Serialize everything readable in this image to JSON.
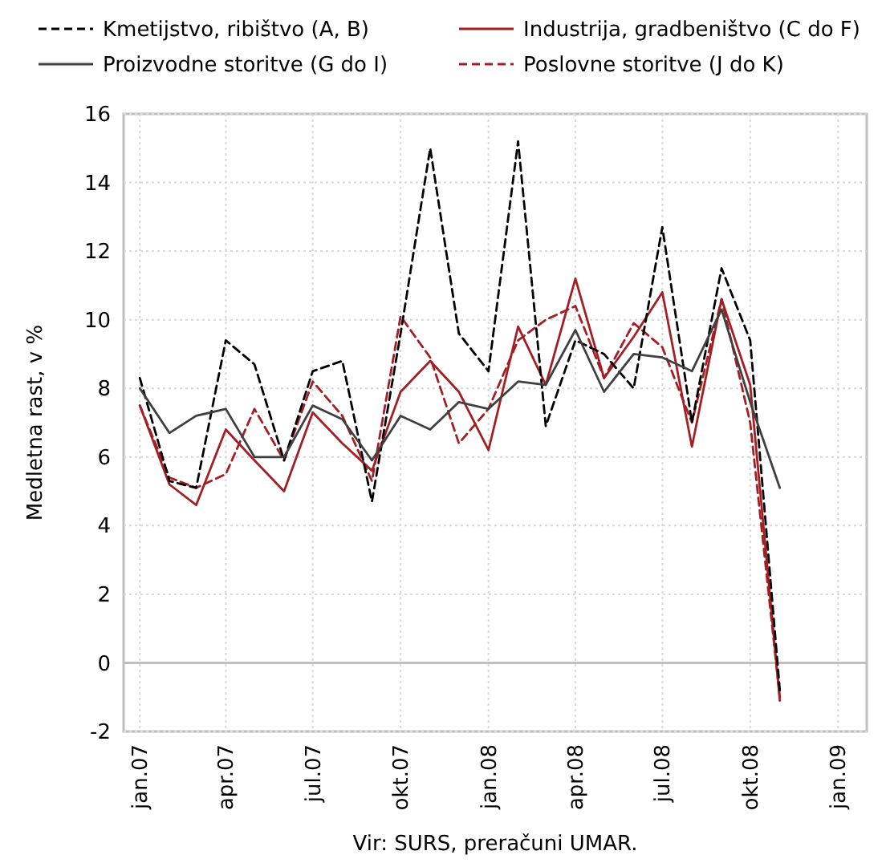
{
  "chart_data": {
    "type": "line",
    "ylabel": "Medletna rast, v %",
    "annotations": [
      "Vir: SURS, preračuni UMAR."
    ],
    "x": [
      "2007-01",
      "2007-02",
      "2007-03",
      "2007-04",
      "2007-05",
      "2007-06",
      "2007-07",
      "2007-08",
      "2007-09",
      "2007-10",
      "2007-11",
      "2007-12",
      "2008-01",
      "2008-02",
      "2008-03",
      "2008-04",
      "2008-05",
      "2008-06",
      "2008-07",
      "2008-08",
      "2008-09",
      "2008-10",
      "2008-11"
    ],
    "series": [
      {
        "name": "Kmetijstvo, ribištvo (A, B)",
        "color": "#000000",
        "line_style": "dashed",
        "values": [
          8.3,
          5.3,
          5.1,
          9.4,
          8.7,
          5.9,
          8.5,
          8.8,
          4.7,
          9.6,
          15.0,
          9.6,
          8.5,
          15.2,
          6.9,
          9.4,
          9.0,
          8.0,
          12.7,
          7.0,
          11.5,
          9.4,
          -0.8
        ]
      },
      {
        "name": "Industrija, gradbeništvo (C do F)",
        "color": "#a31f24",
        "line_style": "solid",
        "values": [
          7.5,
          5.2,
          4.6,
          6.8,
          5.9,
          5.0,
          7.3,
          6.4,
          5.6,
          7.9,
          8.8,
          7.9,
          6.2,
          9.8,
          8.1,
          11.2,
          8.3,
          9.5,
          10.8,
          6.3,
          10.6,
          8.1,
          -1.1
        ]
      },
      {
        "name": "Proizvodne storitve (G do I)",
        "color": "#404040",
        "line_style": "solid",
        "values": [
          8.0,
          6.7,
          7.2,
          7.4,
          6.0,
          6.0,
          7.5,
          7.1,
          5.9,
          7.2,
          6.8,
          7.6,
          7.4,
          8.2,
          8.1,
          9.7,
          7.9,
          9.0,
          8.9,
          8.5,
          10.3,
          7.6,
          5.1
        ]
      },
      {
        "name": "Poslovne storitve (J do K)",
        "color": "#a31f24",
        "line_style": "dashed",
        "values": [
          7.5,
          5.4,
          5.1,
          5.5,
          7.4,
          5.9,
          8.2,
          7.2,
          5.3,
          10.1,
          8.9,
          6.4,
          7.4,
          9.4,
          10.0,
          10.4,
          8.3,
          9.9,
          9.2,
          7.0,
          10.6,
          7.0,
          -1.0
        ]
      }
    ],
    "xlim": [
      "2006-12-15",
      "2009-01-31"
    ],
    "xticks": [
      {
        "value": "2007-01",
        "label": "jan.07"
      },
      {
        "value": "2007-04",
        "label": "apr.07"
      },
      {
        "value": "2007-07",
        "label": "jul.07"
      },
      {
        "value": "2007-10",
        "label": "okt.07"
      },
      {
        "value": "2008-01",
        "label": "jan.08"
      },
      {
        "value": "2008-04",
        "label": "apr.08"
      },
      {
        "value": "2008-07",
        "label": "jul.08"
      },
      {
        "value": "2008-10",
        "label": "okt.08"
      },
      {
        "value": "2009-01",
        "label": "jan.09"
      }
    ],
    "ylim": [
      -2,
      16
    ],
    "yticks": [
      -2,
      0,
      2,
      4,
      6,
      8,
      10,
      12,
      14,
      16
    ],
    "ref_lines": [
      {
        "axis": "y",
        "value": 0,
        "color": "#bfbfbf"
      }
    ],
    "grid": true,
    "legend": "top",
    "marker": "none"
  }
}
